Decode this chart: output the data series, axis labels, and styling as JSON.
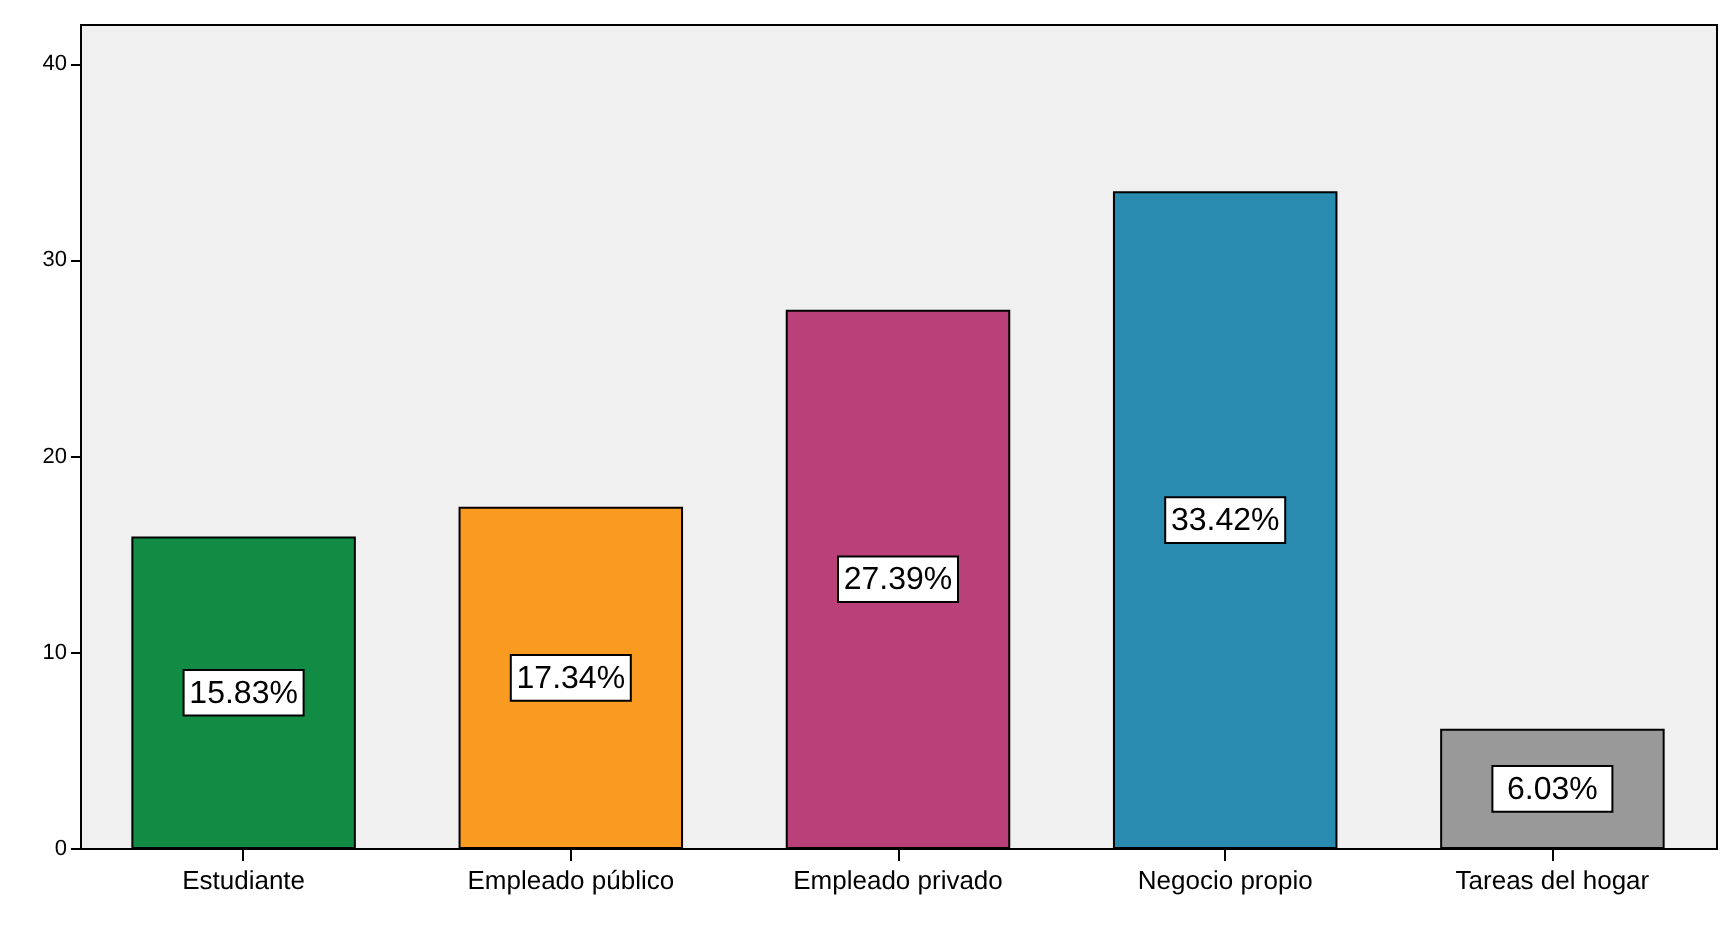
{
  "chart_data": {
    "type": "bar",
    "categories": [
      "Estudiante",
      "Empleado público",
      "Empleado privado",
      "Negocio propio",
      "Tareas del hogar"
    ],
    "values": [
      15.83,
      17.34,
      27.39,
      33.42,
      6.03
    ],
    "colors": [
      "#128c44",
      "#f99b21",
      "#b94079",
      "#2a8bb0",
      "#999999"
    ],
    "value_labels": [
      "15.83%",
      "17.34%",
      "27.39%",
      "33.42%",
      "6.03%"
    ],
    "ylim": [
      0,
      42
    ],
    "yticks": [
      0,
      10,
      20,
      30,
      40
    ],
    "grid": false
  }
}
